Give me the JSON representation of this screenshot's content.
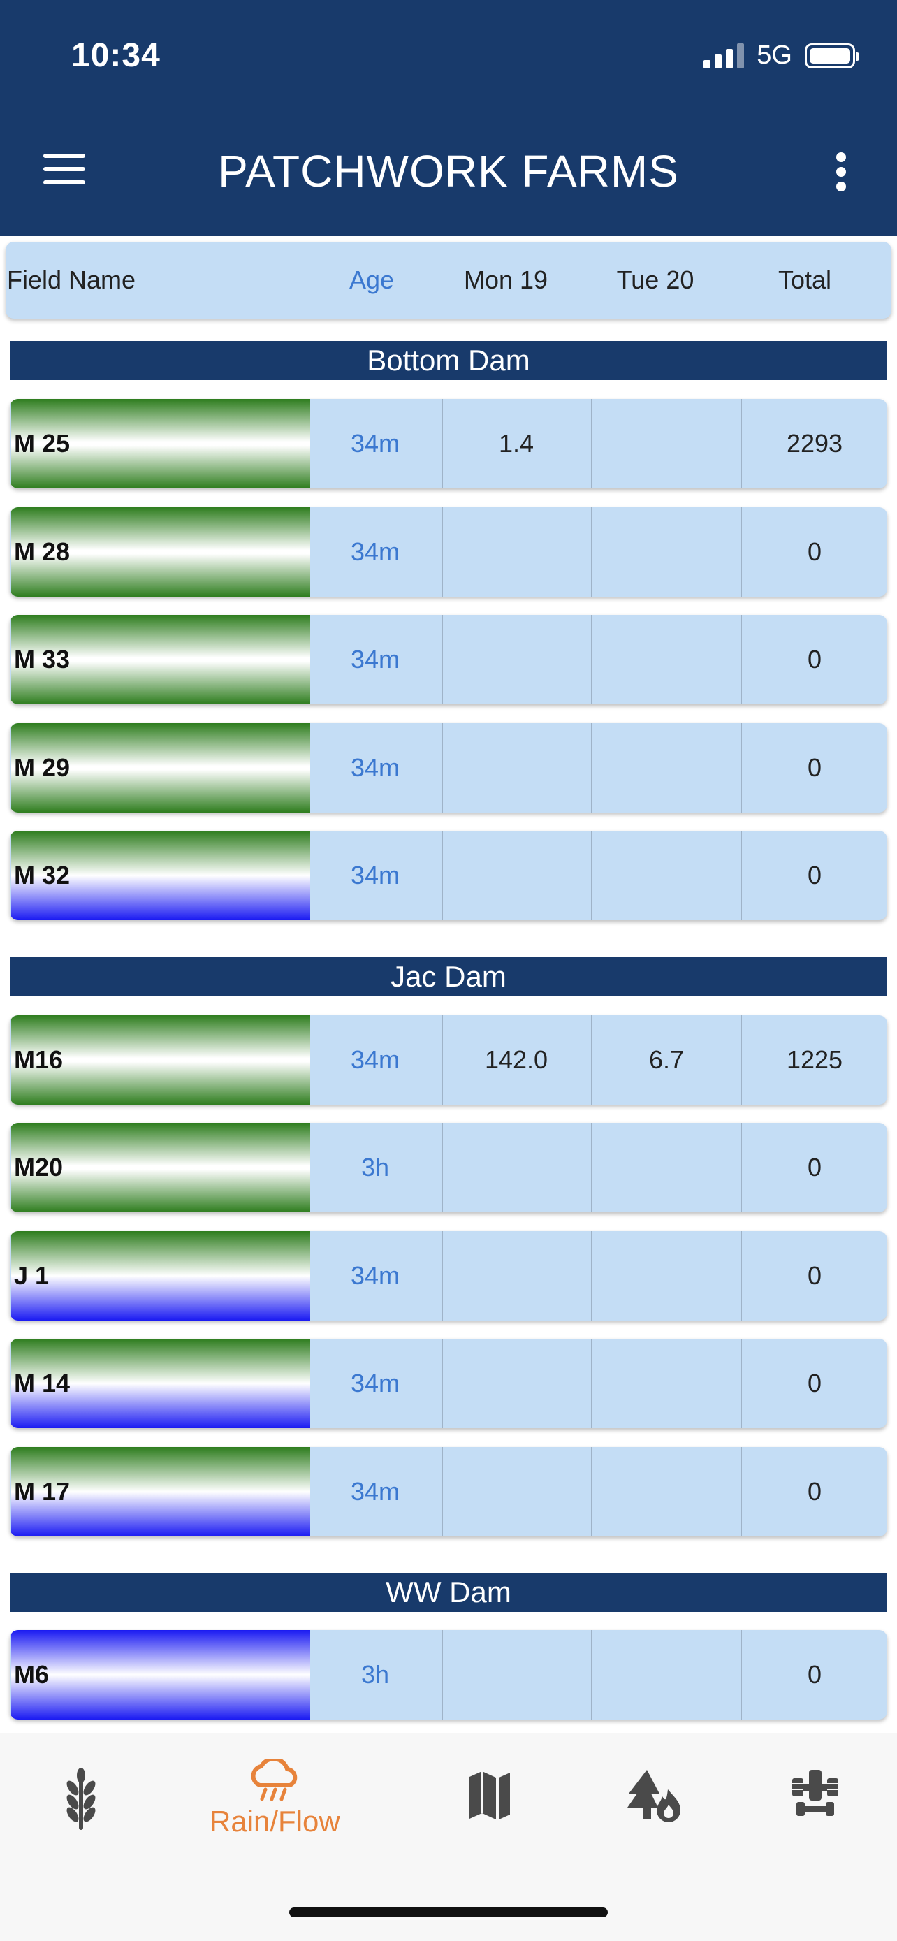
{
  "status_bar": {
    "time": "10:34",
    "network": "5G"
  },
  "header": {
    "title": "PATCHWORK FARMS"
  },
  "columns": {
    "field": "Field Name",
    "age": "Age",
    "mon": "Mon 19",
    "tue": "Tue 20",
    "total": "Total"
  },
  "groups": [
    {
      "name": "Bottom Dam",
      "rows": [
        {
          "field": "M 25",
          "age": "34m",
          "mon": "1.4",
          "tue": "",
          "total": "2293",
          "gauge": "green"
        },
        {
          "field": "M 28",
          "age": "34m",
          "mon": "",
          "tue": "",
          "total": "0",
          "gauge": "green"
        },
        {
          "field": "M 33",
          "age": "34m",
          "mon": "",
          "tue": "",
          "total": "0",
          "gauge": "green"
        },
        {
          "field": "M 29",
          "age": "34m",
          "mon": "",
          "tue": "",
          "total": "0",
          "gauge": "green"
        },
        {
          "field": "M 32",
          "age": "34m",
          "mon": "",
          "tue": "",
          "total": "0",
          "gauge": "green-blue"
        }
      ]
    },
    {
      "name": "Jac Dam",
      "rows": [
        {
          "field": "M16",
          "age": "34m",
          "mon": "142.0",
          "tue": "6.7",
          "total": "1225",
          "gauge": "green"
        },
        {
          "field": "M20",
          "age": "3h",
          "mon": "",
          "tue": "",
          "total": "0",
          "gauge": "green"
        },
        {
          "field": "J 1",
          "age": "34m",
          "mon": "",
          "tue": "",
          "total": "0",
          "gauge": "green-blue"
        },
        {
          "field": "M 14",
          "age": "34m",
          "mon": "",
          "tue": "",
          "total": "0",
          "gauge": "green-blue"
        },
        {
          "field": "M 17",
          "age": "34m",
          "mon": "",
          "tue": "",
          "total": "0",
          "gauge": "green-blue"
        }
      ]
    },
    {
      "name": "WW Dam",
      "rows": [
        {
          "field": "M6",
          "age": "3h",
          "mon": "",
          "tue": "",
          "total": "0",
          "gauge": "blue"
        }
      ]
    }
  ],
  "bottom_nav": {
    "items": [
      {
        "icon": "wheat-icon"
      },
      {
        "icon": "rain-cloud-icon",
        "label": "Rain/Flow",
        "active": true
      },
      {
        "icon": "map-icon"
      },
      {
        "icon": "forest-fire-icon"
      },
      {
        "icon": "tractor-icon"
      }
    ],
    "active_color": "#e7833b",
    "inactive_color": "#4a4a4a"
  },
  "colors": {
    "header": "#183a6b",
    "row": "#c4ddf5",
    "age_text": "#3b78d0",
    "gauge_green": "#2e7d1e",
    "gauge_blue": "#1a1af2"
  }
}
